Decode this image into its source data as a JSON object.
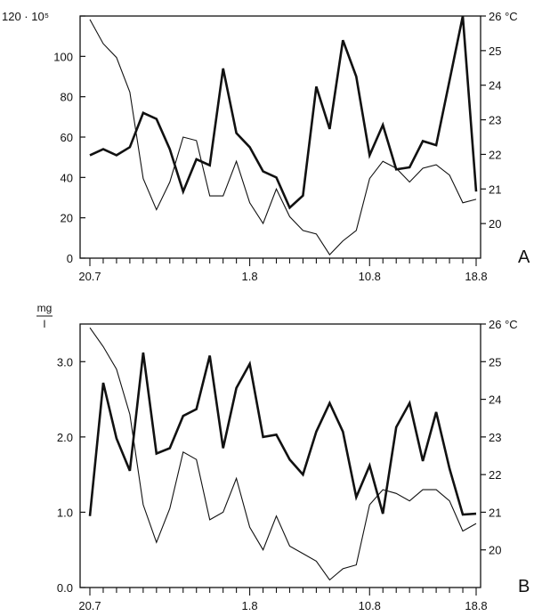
{
  "chart_data": [
    {
      "type": "line",
      "panel_label": "A",
      "x_ticks": [
        "20.7",
        "1.8",
        "10.8",
        "18.8"
      ],
      "x_range_days": [
        0,
        29
      ],
      "x_tick_days": [
        0,
        12,
        21,
        29
      ],
      "left_axis": {
        "ylim": [
          0,
          120
        ],
        "ticks": [
          "0",
          "20",
          "40",
          "60",
          "80",
          "100",
          "120 · 10⁵"
        ]
      },
      "right_axis": {
        "ylim": [
          19,
          26
        ],
        "ticks": [
          "20",
          "21",
          "22",
          "23",
          "24",
          "25",
          "26 °C"
        ]
      },
      "series": [
        {
          "style": "thick",
          "axis": "left",
          "x": [
            0,
            1,
            2,
            3,
            4,
            5,
            6,
            7,
            8,
            9,
            10,
            11,
            12,
            13,
            14,
            15,
            16,
            17,
            18,
            19,
            20,
            21,
            22,
            23,
            24,
            25,
            26,
            27,
            28,
            29
          ],
          "values": [
            51,
            54,
            51,
            55,
            72,
            69,
            54,
            33,
            49,
            46,
            94,
            62,
            55,
            43,
            40,
            25,
            31,
            85,
            64,
            108,
            90,
            51,
            66,
            44,
            45,
            58,
            56,
            88,
            120,
            33
          ]
        },
        {
          "style": "thin",
          "axis": "right",
          "x": [
            0,
            1,
            2,
            3,
            4,
            5,
            6,
            7,
            8,
            9,
            10,
            11,
            12,
            13,
            14,
            15,
            16,
            17,
            18,
            19,
            20,
            21,
            22,
            23,
            24,
            25,
            26,
            27,
            28,
            29
          ],
          "values": [
            25.9,
            25.2,
            24.8,
            23.8,
            21.3,
            20.4,
            21.2,
            22.5,
            22.4,
            20.8,
            20.8,
            21.8,
            20.6,
            20.0,
            21.0,
            20.2,
            19.8,
            19.7,
            19.1,
            19.5,
            19.8,
            21.3,
            21.8,
            21.6,
            21.2,
            21.6,
            21.7,
            21.4,
            20.6,
            20.7
          ]
        }
      ]
    },
    {
      "type": "line",
      "panel_label": "B",
      "left_unit_label": {
        "numerator": "mg",
        "denominator": "l"
      },
      "x_ticks": [
        "20.7",
        "1.8",
        "10.8",
        "18.8"
      ],
      "x_range_days": [
        0,
        29
      ],
      "x_tick_days": [
        0,
        12,
        21,
        29
      ],
      "left_axis": {
        "ylim": [
          0,
          3.5
        ],
        "ticks": [
          "0.0",
          "1.0",
          "2.0",
          "3.0"
        ]
      },
      "right_axis": {
        "ylim": [
          19,
          26
        ],
        "ticks": [
          "20",
          "21",
          "22",
          "23",
          "24",
          "25",
          "26 °C"
        ]
      },
      "series": [
        {
          "style": "thick",
          "axis": "left",
          "x": [
            0,
            1,
            2,
            3,
            4,
            5,
            6,
            7,
            8,
            9,
            10,
            11,
            12,
            13,
            14,
            15,
            16,
            17,
            18,
            19,
            20,
            21,
            22,
            23,
            24,
            25,
            26,
            27,
            28,
            29
          ],
          "values": [
            0.95,
            2.72,
            1.98,
            1.55,
            3.12,
            1.78,
            1.85,
            2.28,
            2.37,
            3.08,
            1.85,
            2.65,
            2.97,
            2.0,
            2.03,
            1.7,
            1.5,
            2.07,
            2.45,
            2.07,
            1.2,
            1.62,
            0.98,
            2.13,
            2.45,
            1.68,
            2.33,
            1.58,
            0.97,
            0.98
          ]
        },
        {
          "style": "thin",
          "axis": "right",
          "x": [
            0,
            1,
            2,
            3,
            4,
            5,
            6,
            7,
            8,
            9,
            10,
            11,
            12,
            13,
            14,
            15,
            16,
            17,
            18,
            19,
            20,
            21,
            22,
            23,
            24,
            25,
            26,
            27,
            28,
            29
          ],
          "values": [
            25.9,
            25.4,
            24.8,
            23.6,
            21.2,
            20.2,
            21.1,
            22.6,
            22.4,
            20.8,
            21.0,
            21.9,
            20.6,
            20.0,
            20.9,
            20.1,
            19.9,
            19.7,
            19.2,
            19.5,
            19.6,
            21.2,
            21.6,
            21.5,
            21.3,
            21.6,
            21.6,
            21.3,
            20.5,
            20.7
          ]
        }
      ]
    }
  ]
}
